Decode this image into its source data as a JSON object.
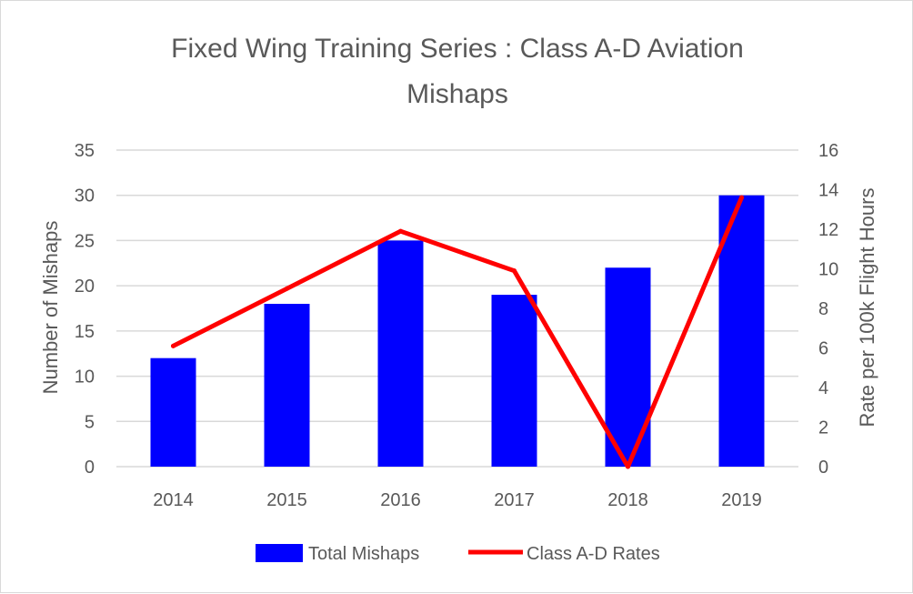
{
  "chart_data": {
    "type": "bar",
    "title_lines": [
      "Fixed Wing Training Series : Class A-D Aviation",
      "Mishaps"
    ],
    "categories": [
      "2014",
      "2015",
      "2016",
      "2017",
      "2018",
      "2019"
    ],
    "series": [
      {
        "name": "Total Mishaps",
        "type": "bar",
        "axis": "left",
        "color": "#0000ff",
        "values": [
          12,
          18,
          25,
          19,
          22,
          30
        ]
      },
      {
        "name": "Class A-D Rates",
        "type": "line",
        "axis": "right",
        "color": "#ff0000",
        "values": [
          6.1,
          9.0,
          11.9,
          9.9,
          0.0,
          13.6
        ]
      }
    ],
    "ylabel": "Number of Mishaps",
    "ylabel_right": "Rate per 100k Flight Hours",
    "ylim": [
      0,
      35
    ],
    "ylim_right": [
      0,
      16
    ],
    "yticks": [
      0,
      5,
      10,
      15,
      20,
      25,
      30,
      35
    ],
    "yticks_right": [
      0,
      2,
      4,
      6,
      8,
      10,
      12,
      14,
      16
    ],
    "grid": true,
    "legend_position": "bottom",
    "gridline_color": "#d9d9d9"
  }
}
